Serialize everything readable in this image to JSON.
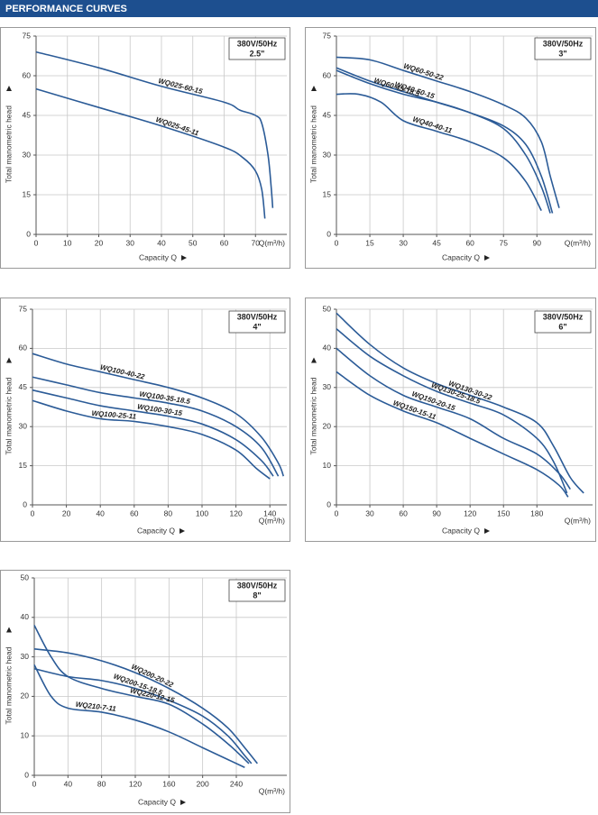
{
  "header": {
    "title": "PERFORMANCE CURVES"
  },
  "chart_data": [
    {
      "type": "line",
      "box_title": "380V/50Hz",
      "box_subtitle": "2.5\"",
      "ylabel": "Total manometric head",
      "xlabel": "Capacity Q",
      "xunit": "Q(m³/h)",
      "xlim": [
        0,
        80
      ],
      "ylim": [
        0,
        75
      ],
      "xticks": [
        0,
        10,
        20,
        30,
        40,
        50,
        60,
        70
      ],
      "yticks": [
        0,
        15,
        30,
        45,
        60,
        75
      ],
      "grid": true,
      "series": [
        {
          "name": "WQ025-60-15",
          "color": "#2b5b97",
          "x": [
            0,
            20,
            40,
            60,
            65,
            70,
            72,
            74,
            75,
            75.5
          ],
          "values": [
            69,
            63,
            56,
            50,
            47,
            45,
            42,
            30,
            18,
            10
          ]
        },
        {
          "name": "WQ025-45-11",
          "color": "#2b5b97",
          "x": [
            0,
            20,
            40,
            60,
            66,
            70,
            72,
            73
          ],
          "values": [
            55,
            48,
            41,
            33,
            29,
            24,
            17,
            6
          ]
        }
      ]
    },
    {
      "type": "line",
      "box_title": "380V/50Hz",
      "box_subtitle": "3\"",
      "ylabel": "Total manometric head",
      "xlabel": "Capacity Q",
      "xunit": "Q(m³/h)",
      "xlim": [
        0,
        115
      ],
      "ylim": [
        0,
        75
      ],
      "xticks": [
        0,
        15,
        30,
        45,
        60,
        75,
        90
      ],
      "yticks": [
        0,
        15,
        30,
        45,
        60,
        75
      ],
      "grid": true,
      "series": [
        {
          "name": "WQ60-50-22",
          "color": "#2b5b97",
          "x": [
            0,
            15,
            30,
            45,
            60,
            75,
            85,
            92,
            96,
            100
          ],
          "values": [
            67,
            66,
            62,
            58,
            54,
            49,
            44,
            35,
            22,
            10
          ]
        },
        {
          "name": "WQ40-50-15",
          "color": "#2b5b97",
          "x": [
            0,
            15,
            30,
            45,
            60,
            75,
            85,
            92,
            97
          ],
          "values": [
            63,
            58,
            54,
            50,
            46,
            41,
            34,
            22,
            8
          ]
        },
        {
          "name": "WQ60-45-18.5",
          "color": "#2b5b97",
          "x": [
            0,
            15,
            30,
            45,
            60,
            75,
            85,
            92,
            96
          ],
          "values": [
            62,
            57,
            53,
            50,
            46,
            40,
            30,
            18,
            8
          ]
        },
        {
          "name": "WQ40-40-11",
          "color": "#2b5b97",
          "x": [
            0,
            10,
            20,
            30,
            45,
            60,
            75,
            85,
            92
          ],
          "values": [
            53,
            53,
            50,
            43,
            39,
            35,
            29,
            20,
            9
          ]
        }
      ]
    },
    {
      "type": "line",
      "box_title": "380V/50Hz",
      "box_subtitle": "4\"",
      "ylabel": "Total manometric head",
      "xlabel": "Capacity Q",
      "xunit": "Q(m³/h)",
      "xlim": [
        0,
        150
      ],
      "ylim": [
        0,
        75
      ],
      "xticks": [
        0,
        20,
        40,
        60,
        80,
        100,
        120,
        140
      ],
      "yticks": [
        0,
        15,
        30,
        45,
        60,
        75
      ],
      "grid": true,
      "series": [
        {
          "name": "WQ100-40-22",
          "color": "#2b5b97",
          "x": [
            0,
            20,
            40,
            60,
            80,
            100,
            120,
            135,
            145,
            148
          ],
          "values": [
            58,
            54,
            51,
            48,
            45,
            41,
            35,
            26,
            16,
            11
          ]
        },
        {
          "name": "WQ100-35-18.5",
          "color": "#2b5b97",
          "x": [
            0,
            20,
            40,
            60,
            80,
            100,
            120,
            135,
            145
          ],
          "values": [
            49,
            46,
            43,
            41,
            39,
            36,
            30,
            22,
            11
          ]
        },
        {
          "name": "WQ100-30-15",
          "color": "#2b5b97",
          "x": [
            0,
            20,
            40,
            60,
            80,
            100,
            120,
            135,
            142
          ],
          "values": [
            44,
            41,
            38,
            36,
            34,
            31,
            25,
            17,
            11
          ]
        },
        {
          "name": "WQ100-25-11",
          "color": "#2b5b97",
          "x": [
            0,
            20,
            40,
            60,
            80,
            100,
            120,
            132,
            140
          ],
          "values": [
            40,
            36,
            33,
            32,
            30,
            27,
            21,
            14,
            10
          ]
        }
      ]
    },
    {
      "type": "line",
      "box_title": "380V/50Hz",
      "box_subtitle": "6\"",
      "ylabel": "Total manometric head",
      "xlabel": "Capacity Q",
      "xunit": "Q(m³/h)",
      "xlim": [
        0,
        230
      ],
      "ylim": [
        0,
        50
      ],
      "xticks": [
        0,
        30,
        60,
        90,
        120,
        150,
        180
      ],
      "yticks": [
        0,
        10,
        20,
        30,
        40,
        50
      ],
      "grid": true,
      "series": [
        {
          "name": "WQ130-30-22",
          "color": "#2b5b97",
          "x": [
            0,
            30,
            60,
            90,
            120,
            150,
            180,
            195,
            210,
            222
          ],
          "values": [
            49,
            41,
            35,
            31,
            28,
            25,
            21,
            15,
            7,
            3
          ]
        },
        {
          "name": "WQ130-25-18.5",
          "color": "#2b5b97",
          "x": [
            0,
            30,
            60,
            90,
            120,
            150,
            180,
            195,
            207
          ],
          "values": [
            45,
            38,
            33,
            29,
            26,
            23,
            17,
            11,
            3
          ]
        },
        {
          "name": "WQ150-20-15",
          "color": "#2b5b97",
          "x": [
            0,
            30,
            60,
            90,
            120,
            150,
            180,
            200,
            210
          ],
          "values": [
            40,
            33,
            28,
            25,
            22,
            17,
            13,
            8,
            4
          ]
        },
        {
          "name": "WQ150-15-11",
          "color": "#2b5b97",
          "x": [
            0,
            30,
            60,
            90,
            120,
            150,
            180,
            200,
            208
          ],
          "values": [
            34,
            28,
            24,
            21,
            17,
            13,
            9,
            5,
            2
          ]
        }
      ]
    },
    {
      "type": "line",
      "box_title": "380V/50Hz",
      "box_subtitle": "8\"",
      "ylabel": "Total manometric head",
      "xlabel": "Capacity Q",
      "xunit": "Q(m³/h)",
      "xlim": [
        0,
        300
      ],
      "ylim": [
        0,
        50
      ],
      "xticks": [
        0,
        40,
        80,
        120,
        160,
        200,
        240
      ],
      "yticks": [
        0,
        10,
        20,
        30,
        40,
        50
      ],
      "grid": true,
      "series": [
        {
          "name": "WQ200-20-22",
          "color": "#2b5b97",
          "x": [
            0,
            40,
            80,
            120,
            160,
            200,
            230,
            250,
            265
          ],
          "values": [
            32,
            31,
            29,
            26,
            22,
            17,
            12,
            7,
            3
          ]
        },
        {
          "name": "WQ200-15-18.5",
          "color": "#2b5b97",
          "x": [
            0,
            40,
            80,
            120,
            160,
            200,
            230,
            250,
            258
          ],
          "values": [
            27,
            25,
            24,
            22,
            19,
            15,
            10,
            5,
            3
          ]
        },
        {
          "name": "WQ220-12-15",
          "color": "#2b5b97",
          "x": [
            0,
            20,
            40,
            80,
            120,
            160,
            200,
            230,
            255
          ],
          "values": [
            38,
            30,
            25,
            22,
            20,
            18,
            13,
            8,
            3
          ]
        },
        {
          "name": "WQ210-7-11",
          "color": "#2b5b97",
          "x": [
            0,
            20,
            40,
            80,
            120,
            160,
            200,
            230,
            250
          ],
          "values": [
            28,
            20,
            17,
            16,
            14,
            11,
            7,
            4,
            2
          ]
        }
      ]
    }
  ]
}
